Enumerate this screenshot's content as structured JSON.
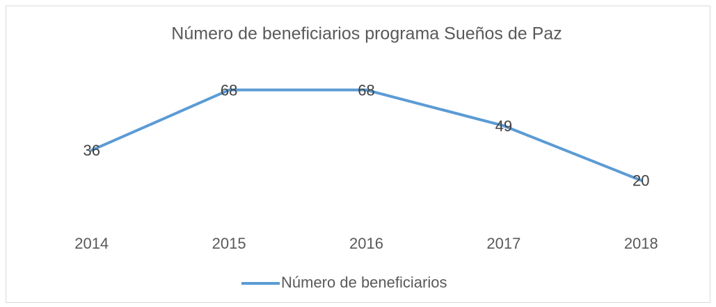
{
  "chart_data": {
    "type": "line",
    "title": "Número de beneficiarios programa Sueños de Paz",
    "categories": [
      "2014",
      "2015",
      "2016",
      "2017",
      "2018"
    ],
    "series": [
      {
        "name": "Número de beneficiarios",
        "color": "#5b9bd5",
        "values": [
          36,
          68,
          68,
          49,
          20
        ]
      }
    ],
    "ylim": [
      0,
      80
    ],
    "grid": false,
    "legend": "bottom"
  }
}
